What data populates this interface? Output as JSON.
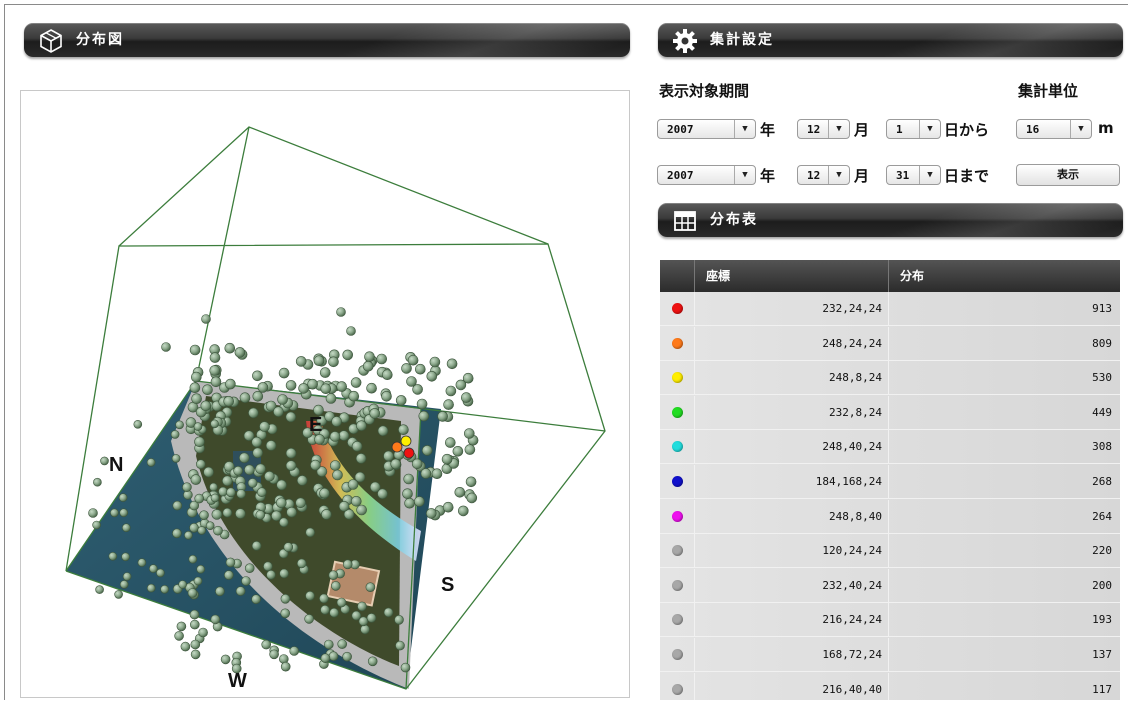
{
  "distribution_panel": {
    "title": "分布図",
    "icon": "cube-icon",
    "compass": {
      "north": "N",
      "east": "E",
      "south": "S",
      "west": "W"
    }
  },
  "settings_panel": {
    "title": "集計設定",
    "icon": "gear-icon",
    "period_label": "表示対象期間",
    "unit_label": "集計単位",
    "start": {
      "year": "2007",
      "year_suffix": "年",
      "month": "12",
      "month_suffix": "月",
      "day": "1",
      "day_suffix": "日から"
    },
    "end": {
      "year": "2007",
      "year_suffix": "年",
      "month": "12",
      "month_suffix": "月",
      "day": "31",
      "day_suffix": "日まで"
    },
    "unit": {
      "value": "16",
      "suffix": "m"
    },
    "show_button": "表示"
  },
  "table_panel": {
    "title": "分布表",
    "icon": "table-icon",
    "headers": {
      "coord": "座標",
      "count": "分布"
    },
    "rows": [
      {
        "color": "#ee1111",
        "coord": "232,24,24",
        "count": "913"
      },
      {
        "color": "#ff7a1a",
        "coord": "248,24,24",
        "count": "809"
      },
      {
        "color": "#ffee00",
        "coord": "248,8,24",
        "count": "530"
      },
      {
        "color": "#22dd22",
        "coord": "232,8,24",
        "count": "449"
      },
      {
        "color": "#22dddd",
        "coord": "248,40,24",
        "count": "308"
      },
      {
        "color": "#1111cc",
        "coord": "184,168,24",
        "count": "268"
      },
      {
        "color": "#ee11ee",
        "coord": "248,8,40",
        "count": "264"
      },
      {
        "color": "#a8a8a8",
        "coord": "120,24,24",
        "count": "220"
      },
      {
        "color": "#a8a8a8",
        "coord": "232,40,24",
        "count": "200"
      },
      {
        "color": "#a8a8a8",
        "coord": "216,24,24",
        "count": "193"
      },
      {
        "color": "#a8a8a8",
        "coord": "168,72,24",
        "count": "137"
      },
      {
        "color": "#a8a8a8",
        "coord": "216,40,40",
        "count": "117"
      }
    ]
  }
}
